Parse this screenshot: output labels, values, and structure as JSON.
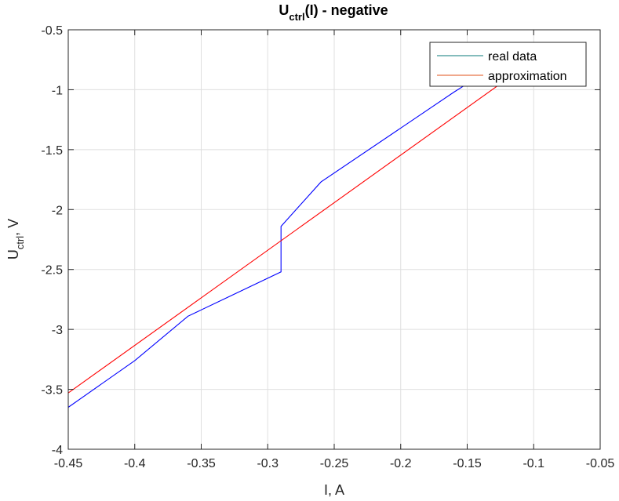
{
  "chart_data": {
    "type": "line",
    "title": {
      "main": "U",
      "sub": "ctrl",
      "rest": "(I) - negative"
    },
    "xlabel": "I, A",
    "ylabel": {
      "main": "U",
      "sub": "ctrl",
      "rest": ", V"
    },
    "xlim": [
      -0.45,
      -0.05
    ],
    "ylim": [
      -4,
      -0.5
    ],
    "xticks": [
      -0.45,
      -0.4,
      -0.35,
      -0.3,
      -0.25,
      -0.2,
      -0.15,
      -0.1,
      -0.05
    ],
    "xtick_labels": [
      "-0.45",
      "-0.4",
      "-0.35",
      "-0.3",
      "-0.25",
      "-0.2",
      "-0.15",
      "-0.1",
      "-0.05"
    ],
    "yticks": [
      -0.5,
      -1,
      -1.5,
      -2,
      -2.5,
      -3,
      -3.5,
      -4
    ],
    "ytick_labels": [
      "-0.5",
      "-1",
      "-1.5",
      "-2",
      "-2.5",
      "-3",
      "-3.5",
      "-4"
    ],
    "grid": true,
    "legend_position": "top-right",
    "series": [
      {
        "name": "real data",
        "color": "#0000ff",
        "legend_color": "#0a7a7a",
        "x": [
          -0.45,
          -0.4,
          -0.36,
          -0.29,
          -0.29,
          -0.26,
          -0.16,
          -0.15
        ],
        "y": [
          -3.65,
          -3.26,
          -2.89,
          -2.52,
          -2.14,
          -1.77,
          -1.02,
          -0.95
        ]
      },
      {
        "name": "approximation",
        "color": "#ff0000",
        "legend_color": "#e0501a",
        "x": [
          -0.45,
          -0.125
        ],
        "y": [
          -3.53,
          -0.95
        ]
      }
    ]
  }
}
